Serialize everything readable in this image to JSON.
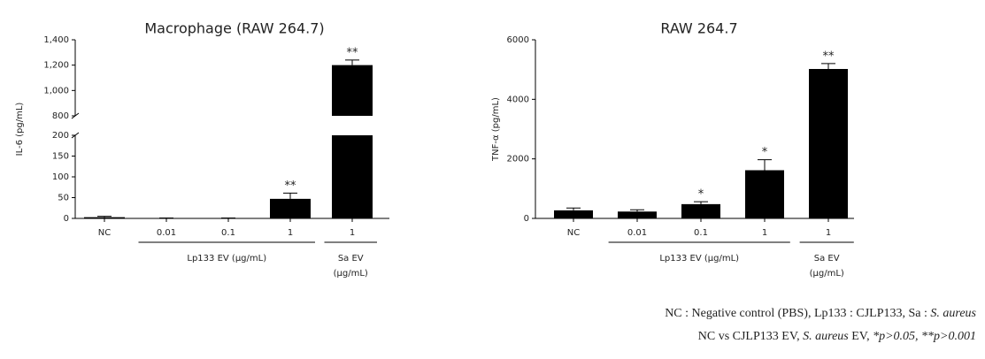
{
  "chart_data": [
    {
      "type": "bar",
      "title": "Macrophage (RAW 264.7)",
      "y_label": "IL-6 (pg/mL)",
      "categories": [
        "NC",
        "0.01",
        "0.1",
        "1",
        "1"
      ],
      "values": [
        3,
        1,
        1,
        47,
        1200
      ],
      "errors": [
        2,
        0,
        0,
        14,
        40
      ],
      "value_annotations": [
        null,
        null,
        null,
        "**",
        "**"
      ],
      "color": "#000000",
      "ylim": [
        0,
        1400
      ],
      "axis_break": [
        200,
        800
      ],
      "yticks": [
        0,
        50,
        100,
        150,
        200,
        800,
        {
          "value": 1000,
          "label": "1,000"
        },
        {
          "value": 1200,
          "label": "1,200"
        },
        {
          "value": 1400,
          "label": "1,400"
        }
      ],
      "groups": [
        {
          "label": [
            "Lp133 EV (μg/mL)"
          ],
          "span": [
            1,
            3
          ]
        },
        {
          "label": [
            "Sa EV",
            "(μg/mL)"
          ],
          "span": [
            4,
            4
          ]
        }
      ]
    },
    {
      "type": "bar",
      "title": "RAW 264.7",
      "y_label": "TNF-α (pg/mL)",
      "categories": [
        "NC",
        "0.01",
        "0.1",
        "1",
        "1"
      ],
      "values": [
        270,
        230,
        480,
        1620,
        5020
      ],
      "errors": [
        80,
        60,
        80,
        350,
        180
      ],
      "value_annotations": [
        null,
        null,
        "*",
        "*",
        "**"
      ],
      "color": "#000000",
      "ylim": [
        0,
        6000
      ],
      "yticks": [
        0,
        2000,
        4000,
        6000
      ],
      "groups": [
        {
          "label": [
            "Lp133 EV (μg/mL)"
          ],
          "span": [
            1,
            3
          ]
        },
        {
          "label": [
            "Sa EV",
            "(μg/mL)"
          ],
          "span": [
            4,
            4
          ]
        }
      ]
    }
  ],
  "footnote": [
    [
      {
        "text": "NC : Negative control (PBS), Lp133 : CJLP133, Sa : ",
        "italic": false
      },
      {
        "text": "S. aureus",
        "italic": true
      }
    ],
    [
      {
        "text": "NC vs CJLP133 EV, ",
        "italic": false
      },
      {
        "text": "S. aureus",
        "italic": true
      },
      {
        "text": " EV, ",
        "italic": false
      },
      {
        "text": "*p>0.05, **p>0.001",
        "italic": true
      }
    ]
  ]
}
